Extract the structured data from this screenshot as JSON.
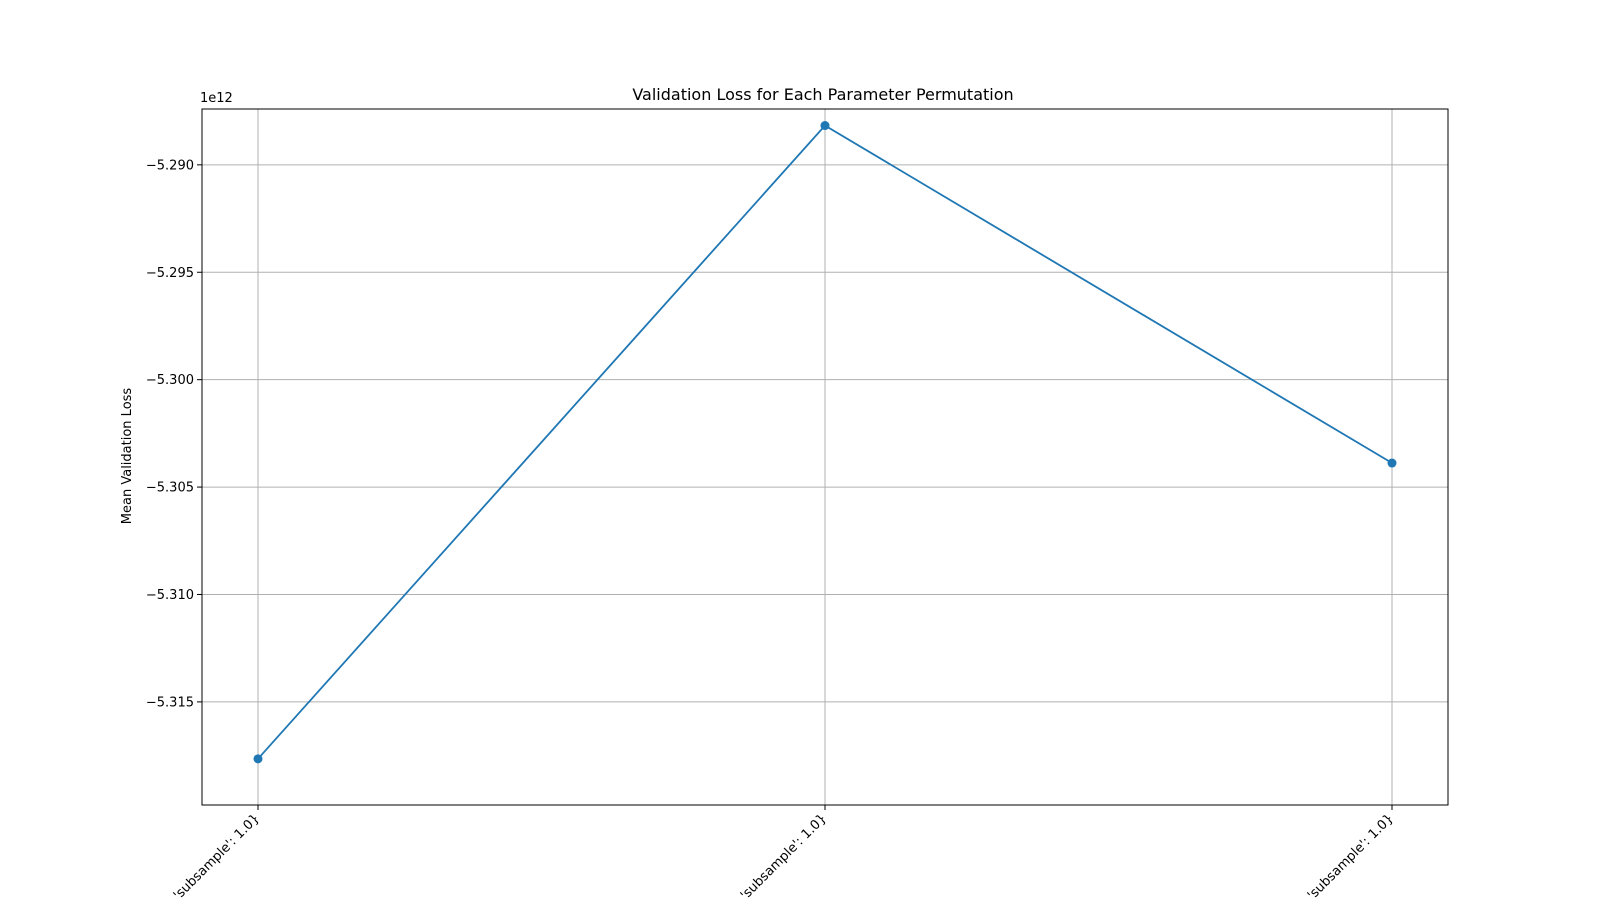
{
  "chart_data": {
    "type": "line",
    "title": "Validation Loss for Each Parameter Permutation",
    "xlabel": "",
    "ylabel": "Mean Validation Loss",
    "offset_text": "1e12",
    "categories": [
      "'subsample': 1.0}",
      "'subsample': 1.0}",
      "'subsample': 1.0}"
    ],
    "series": [
      {
        "values": [
          -5317650000000.0,
          -5288170000000.0,
          -5303880000000.0
        ]
      }
    ],
    "ylim": [
      -5319800000000.0,
      -5287400000000.0
    ],
    "yticks": [
      -5315000000000.0,
      -5310000000000.0,
      -5305000000000.0,
      -5300000000000.0,
      -5295000000000.0,
      -5290000000000.0
    ],
    "ytick_labels": [
      "−5.315",
      "−5.310",
      "−5.305",
      "−5.300",
      "−5.295",
      "−5.290"
    ],
    "grid": true,
    "legend": "none",
    "color": "#1f77b4"
  }
}
